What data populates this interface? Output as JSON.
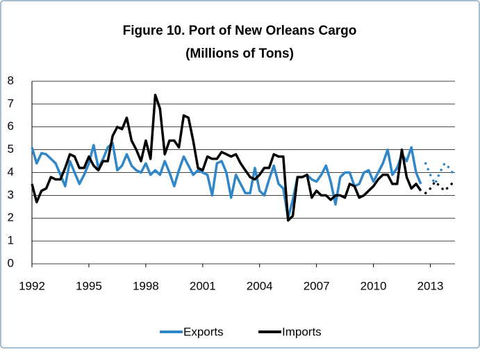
{
  "chart_data": {
    "type": "line",
    "title": "Figure 10. Port of New Orleans Cargo",
    "subtitle": "(Millions of Tons)",
    "x": [
      1992,
      1992.25,
      1992.5,
      1992.75,
      1993,
      1993.25,
      1993.5,
      1993.75,
      1994,
      1994.25,
      1994.5,
      1994.75,
      1995,
      1995.25,
      1995.5,
      1995.75,
      1996,
      1996.25,
      1996.5,
      1996.75,
      1997,
      1997.25,
      1997.5,
      1997.75,
      1998,
      1998.25,
      1998.5,
      1998.75,
      1999,
      1999.25,
      1999.5,
      1999.75,
      2000,
      2000.25,
      2000.5,
      2000.75,
      2001,
      2001.25,
      2001.5,
      2001.75,
      2002,
      2002.25,
      2002.5,
      2002.75,
      2003,
      2003.25,
      2003.5,
      2003.75,
      2004,
      2004.25,
      2004.5,
      2004.75,
      2005,
      2005.25,
      2005.5,
      2005.75,
      2006,
      2006.25,
      2006.5,
      2006.75,
      2007,
      2007.25,
      2007.5,
      2007.75,
      2008,
      2008.25,
      2008.5,
      2008.75,
      2009,
      2009.25,
      2009.5,
      2009.75,
      2010,
      2010.25,
      2010.5,
      2010.75,
      2011,
      2011.25,
      2011.5,
      2011.75,
      2012,
      2012.25,
      2012.5,
      2012.75,
      2013,
      2013.25,
      2013.5,
      2013.75,
      2014,
      2014.25
    ],
    "series": [
      {
        "name": "Exports",
        "color": "#2f86c8",
        "values": [
          5.1,
          4.4,
          4.85,
          4.8,
          4.6,
          4.4,
          3.9,
          3.4,
          4.5,
          4.0,
          3.5,
          3.9,
          4.4,
          5.2,
          4.2,
          4.6,
          5.1,
          5.3,
          4.1,
          4.3,
          4.8,
          4.3,
          4.1,
          4.0,
          4.4,
          3.9,
          4.1,
          3.9,
          4.5,
          4.0,
          3.4,
          4.1,
          4.7,
          4.3,
          3.9,
          4.1,
          4.0,
          3.9,
          3.0,
          4.4,
          4.5,
          4.0,
          2.9,
          3.9,
          3.5,
          3.1,
          3.1,
          4.2,
          3.2,
          3.0,
          3.7,
          4.3,
          3.5,
          3.3,
          2.0,
          2.8,
          3.8,
          3.8,
          3.9,
          3.7,
          3.6,
          3.9,
          4.3,
          3.6,
          2.6,
          3.8,
          4.0,
          4.0,
          3.4,
          3.5,
          4.0,
          4.1,
          3.6,
          4.0,
          4.4,
          5.0,
          3.9,
          4.2,
          4.8,
          4.5,
          5.1,
          4.0,
          3.5,
          null,
          null,
          null,
          null,
          null,
          null,
          null
        ]
      },
      {
        "name": "Imports",
        "color": "#000000",
        "values": [
          3.5,
          2.7,
          3.2,
          3.3,
          3.8,
          3.7,
          3.7,
          4.2,
          4.8,
          4.7,
          4.2,
          4.2,
          4.7,
          4.3,
          4.1,
          4.5,
          4.5,
          5.6,
          6.0,
          5.9,
          6.4,
          5.4,
          5.0,
          4.5,
          5.4,
          4.6,
          7.4,
          6.8,
          4.8,
          5.4,
          5.4,
          5.1,
          6.5,
          6.4,
          5.4,
          4.2,
          4.1,
          4.7,
          4.6,
          4.6,
          4.9,
          4.8,
          4.7,
          4.8,
          4.4,
          4.1,
          3.8,
          3.7,
          3.9,
          4.2,
          4.2,
          4.8,
          4.7,
          4.7,
          1.9,
          2.1,
          3.8,
          3.8,
          3.9,
          2.9,
          3.2,
          3.0,
          3.0,
          2.8,
          3.0,
          3.0,
          2.9,
          3.5,
          3.4,
          2.9,
          3.0,
          3.2,
          3.4,
          3.7,
          3.9,
          3.9,
          3.5,
          3.5,
          5.0,
          3.8,
          3.3,
          3.5,
          3.2,
          null,
          null,
          null,
          null,
          null,
          null,
          null
        ]
      },
      {
        "color": "#2f86c8",
        "dash": "dotted",
        "values": [
          null,
          null,
          null,
          null,
          null,
          null,
          null,
          null,
          null,
          null,
          null,
          null,
          null,
          null,
          null,
          null,
          null,
          null,
          null,
          null,
          null,
          null,
          null,
          null,
          null,
          null,
          null,
          null,
          null,
          null,
          null,
          null,
          null,
          null,
          null,
          null,
          null,
          null,
          null,
          null,
          null,
          null,
          null,
          null,
          null,
          null,
          null,
          null,
          null,
          null,
          null,
          null,
          null,
          null,
          null,
          null,
          null,
          null,
          null,
          null,
          null,
          null,
          null,
          null,
          null,
          null,
          null,
          null,
          null,
          null,
          null,
          null,
          null,
          null,
          null,
          null,
          null,
          null,
          null,
          null,
          null,
          null,
          null,
          4.4,
          3.9,
          3.5,
          4.0,
          4.4,
          4.2,
          3.9
        ]
      },
      {
        "color": "#000000",
        "dash": "dotted",
        "values": [
          null,
          null,
          null,
          null,
          null,
          null,
          null,
          null,
          null,
          null,
          null,
          null,
          null,
          null,
          null,
          null,
          null,
          null,
          null,
          null,
          null,
          null,
          null,
          null,
          null,
          null,
          null,
          null,
          null,
          null,
          null,
          null,
          null,
          null,
          null,
          null,
          null,
          null,
          null,
          null,
          null,
          null,
          null,
          null,
          null,
          null,
          null,
          null,
          null,
          null,
          null,
          null,
          null,
          null,
          null,
          null,
          null,
          null,
          null,
          null,
          null,
          null,
          null,
          null,
          null,
          null,
          null,
          null,
          null,
          null,
          null,
          null,
          null,
          null,
          null,
          null,
          null,
          null,
          null,
          null,
          null,
          null,
          null,
          3.1,
          3.3,
          3.6,
          3.4,
          3.2,
          3.4,
          3.6
        ]
      }
    ],
    "xlim": [
      1992,
      2014.3
    ],
    "xticks": [
      1992,
      1995,
      1998,
      2001,
      2004,
      2007,
      2010,
      2013
    ],
    "ylim": [
      0,
      8
    ],
    "yticks": [
      0,
      1,
      2,
      3,
      4,
      5,
      6,
      7,
      8
    ],
    "grid": true,
    "legend": "bottom"
  }
}
